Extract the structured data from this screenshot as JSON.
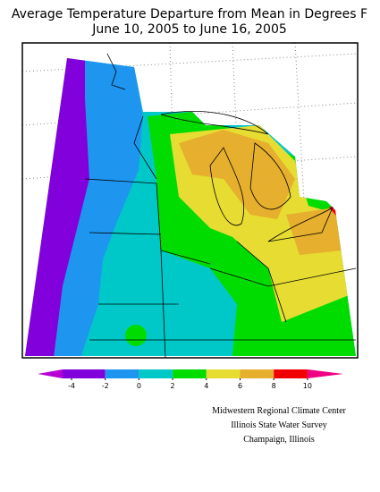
{
  "title": [
    "Average Temperature Departure from Mean in Degrees F",
    "June 10, 2005 to June 16, 2005"
  ],
  "legend": {
    "ticks": [
      -4,
      -2,
      0,
      2,
      4,
      6,
      8,
      10
    ],
    "colors": [
      "#b400d2",
      "#8200dc",
      "#1e96f0",
      "#00c8c8",
      "#00dc00",
      "#e6dc32",
      "#e6af2d",
      "#f00000",
      "#f00082"
    ]
  },
  "credits": [
    "Midwestern Regional Climate Center",
    "Illinois State Water Survey",
    "Champaign, Illinois"
  ]
}
